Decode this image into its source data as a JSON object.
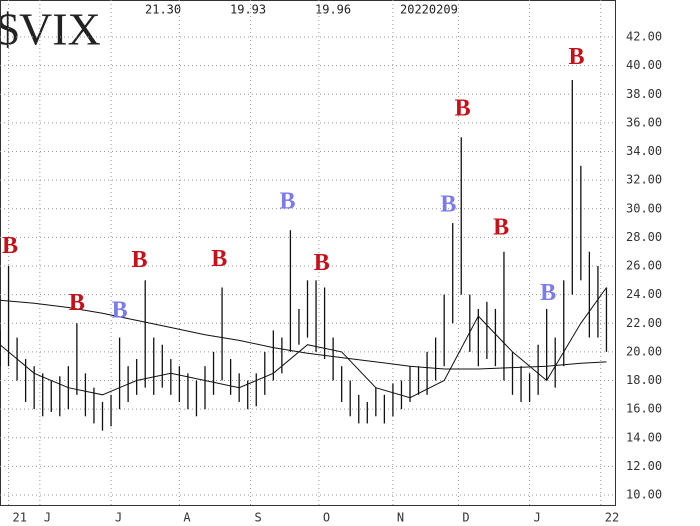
{
  "chart_data": {
    "type": "hilo",
    "title": "$VIX",
    "header": [
      "21.30",
      "19.93",
      "19.96",
      "20220209"
    ],
    "x": [
      0,
      3,
      6,
      9,
      12,
      15,
      18,
      21,
      24,
      27,
      30,
      33,
      36,
      39,
      42,
      45,
      48,
      51,
      54,
      57,
      60,
      63,
      66,
      69,
      72,
      75,
      78,
      81,
      84,
      87,
      90,
      93,
      96,
      99,
      102,
      105,
      108,
      111,
      114,
      117,
      120,
      123,
      126,
      129,
      132,
      135,
      138,
      141,
      144,
      147,
      150,
      153,
      156,
      159,
      162,
      165,
      168,
      171,
      174,
      177,
      180,
      183,
      186,
      189,
      192,
      195,
      198,
      201,
      204,
      207,
      210,
      213
    ],
    "series": [
      {
        "name": "high",
        "color": "#111111",
        "values": [
          21.5,
          26,
          21,
          19.5,
          19,
          18.5,
          18,
          18.3,
          19,
          22,
          18.5,
          17.5,
          16.5,
          17,
          21,
          19,
          19.5,
          25,
          21,
          20.5,
          19.5,
          19,
          18.5,
          18,
          19,
          20,
          24.5,
          19.5,
          18.5,
          18,
          18.5,
          20,
          21.5,
          21,
          28.5,
          23,
          25,
          25,
          24.5,
          21,
          19,
          18,
          17,
          16.5,
          17.5,
          17,
          17.8,
          18,
          19,
          19,
          20,
          21,
          24,
          29,
          35,
          24,
          23,
          23.5,
          23,
          27,
          20,
          19,
          18.5,
          20.5,
          23,
          21,
          25,
          39,
          33,
          27,
          26,
          24.5
        ]
      },
      {
        "name": "low",
        "color": "#111111",
        "values": [
          19,
          19,
          18,
          16.5,
          16,
          15.5,
          15.8,
          15.5,
          16,
          17,
          15.5,
          15,
          14.5,
          14.8,
          16,
          16.5,
          17,
          17.5,
          17,
          17.5,
          17,
          16.5,
          16,
          15.5,
          16,
          17,
          18,
          17,
          16.5,
          16,
          16.2,
          17,
          18,
          18.5,
          20,
          20.5,
          21,
          20,
          19.5,
          18,
          16.5,
          15.5,
          15,
          15,
          15.5,
          15,
          15.5,
          16,
          16.5,
          17,
          17,
          18,
          19,
          22,
          24,
          20,
          19,
          19.5,
          19,
          18,
          17,
          16.5,
          16.5,
          17,
          18,
          17.5,
          19,
          24,
          25,
          21,
          21,
          20
        ]
      }
    ],
    "ma_x": [
      0,
      12,
      24,
      36,
      48,
      60,
      72,
      84,
      96,
      108,
      120,
      132,
      144,
      156,
      168,
      180,
      192,
      204,
      213
    ],
    "moving_averages": [
      {
        "color": "#111111",
        "values": [
          23.6,
          23.4,
          23.1,
          22.7,
          22.2,
          21.7,
          21.2,
          20.8,
          20.3,
          19.9,
          19.6,
          19.3,
          19.0,
          18.8,
          18.8,
          18.9,
          19.0,
          19.2,
          19.3
        ]
      },
      {
        "color": "#111111",
        "values": [
          20.5,
          18.5,
          17.5,
          17.0,
          18.0,
          18.5,
          18.0,
          17.5,
          18.5,
          20.5,
          20.0,
          17.5,
          16.8,
          18.0,
          22.5,
          20.0,
          18.0,
          22.0,
          24.5
        ]
      }
    ],
    "annotations": [
      {
        "text": "B",
        "color": "#c8101a",
        "x": 3.5,
        "y": 27.3
      },
      {
        "text": "B",
        "color": "#c8101a",
        "x": 27,
        "y": 23.3
      },
      {
        "text": "B",
        "color": "#7b7bea",
        "x": 42,
        "y": 22.8
      },
      {
        "text": "B",
        "color": "#c8101a",
        "x": 49,
        "y": 26.3
      },
      {
        "text": "B",
        "color": "#c8101a",
        "x": 77,
        "y": 26.4
      },
      {
        "text": "B",
        "color": "#7b7bea",
        "x": 101,
        "y": 30.4
      },
      {
        "text": "B",
        "color": "#c8101a",
        "x": 113,
        "y": 26.1
      },
      {
        "text": "B",
        "color": "#7b7bea",
        "x": 157.5,
        "y": 30.2
      },
      {
        "text": "B",
        "color": "#c8101a",
        "x": 162.5,
        "y": 36.9
      },
      {
        "text": "B",
        "color": "#c8101a",
        "x": 176,
        "y": 28.6
      },
      {
        "text": "B",
        "color": "#7b7bea",
        "x": 192.5,
        "y": 24.0
      },
      {
        "text": "B",
        "color": "#c8101a",
        "x": 202.5,
        "y": 40.5
      }
    ],
    "xlim": [
      0,
      216
    ],
    "xticks": [
      {
        "value": 3,
        "label": "21"
      },
      {
        "value": 14,
        "label": "J"
      },
      {
        "value": 39,
        "label": "J"
      },
      {
        "value": 63,
        "label": "A"
      },
      {
        "value": 88,
        "label": "S"
      },
      {
        "value": 112,
        "label": "O"
      },
      {
        "value": 138,
        "label": "N"
      },
      {
        "value": 161,
        "label": "D"
      },
      {
        "value": 186,
        "label": "J"
      },
      {
        "value": 211,
        "label": "22"
      }
    ],
    "ylim": [
      10,
      42
    ],
    "yticks": [
      {
        "value": 10,
        "label": "10.00"
      },
      {
        "value": 12,
        "label": "12.00"
      },
      {
        "value": 14,
        "label": "14.00"
      },
      {
        "value": 16,
        "label": "16.00"
      },
      {
        "value": 18,
        "label": "18.00"
      },
      {
        "value": 20,
        "label": "20.00"
      },
      {
        "value": 22,
        "label": "22.00"
      },
      {
        "value": 24,
        "label": "24.00"
      },
      {
        "value": 26,
        "label": "26.00"
      },
      {
        "value": 28,
        "label": "28.00"
      },
      {
        "value": 30,
        "label": "30.00"
      },
      {
        "value": 32,
        "label": "32.00"
      },
      {
        "value": 34,
        "label": "34.00"
      },
      {
        "value": 36,
        "label": "36.00"
      },
      {
        "value": 38,
        "label": "38.00"
      },
      {
        "value": 40,
        "label": "40.00"
      },
      {
        "value": 42,
        "label": "42.00"
      }
    ],
    "grid": true
  }
}
